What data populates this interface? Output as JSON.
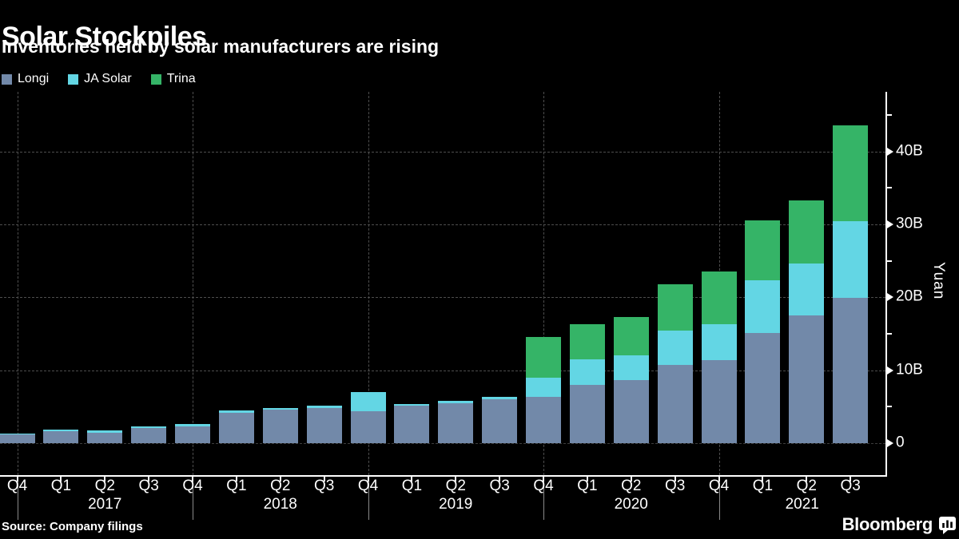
{
  "title": "Solar Stockpiles",
  "subtitle": "Inventories held by solar manufacturers are rising",
  "source": "Source: Company filings",
  "brand": {
    "name": "Bloomberg",
    "icon": "bar-chart-logo-icon"
  },
  "colors": {
    "background": "#000000",
    "text": "#ffffff",
    "grid": "#4d4d4d",
    "axis": "#ffffff",
    "longi": "#7289a9",
    "ja_solar": "#63d6e4",
    "trina": "#35b467"
  },
  "chart_data": {
    "type": "bar",
    "stacked": true,
    "title": "Solar Stockpiles",
    "subtitle": "Inventories held by solar manufacturers are rising",
    "ylabel": "Yuan",
    "unit": "billions of yuan",
    "ylim": [
      0,
      48
    ],
    "yticks": [
      0,
      10,
      20,
      30,
      40
    ],
    "ytick_labels": [
      "0",
      "10B",
      "20B",
      "30B",
      "40B"
    ],
    "grid": "dashed horizontal lines at major ticks, dashed vertical lines at year boundaries",
    "legend_position": "top-left",
    "categories": [
      "Q4 2016",
      "Q1 2017",
      "Q2 2017",
      "Q3 2017",
      "Q4 2017",
      "Q1 2018",
      "Q2 2018",
      "Q3 2018",
      "Q4 2018",
      "Q1 2019",
      "Q2 2019",
      "Q3 2019",
      "Q4 2019",
      "Q1 2020",
      "Q2 2020",
      "Q3 2020",
      "Q4 2020",
      "Q1 2021",
      "Q2 2021",
      "Q3 2021"
    ],
    "x_quarter_labels": [
      "Q4",
      "Q1",
      "Q2",
      "Q3",
      "Q4",
      "Q1",
      "Q2",
      "Q3",
      "Q4",
      "Q1",
      "Q2",
      "Q3",
      "Q4",
      "Q1",
      "Q2",
      "Q3",
      "Q4",
      "Q1",
      "Q2",
      "Q3"
    ],
    "year_labels": [
      "2017",
      "2018",
      "2019",
      "2020",
      "2021"
    ],
    "year_divider_indices": [
      0,
      4,
      8,
      12,
      16
    ],
    "series": [
      {
        "name": "Longi",
        "color": "#7289a9",
        "values": [
          1.25,
          1.65,
          1.45,
          2.05,
          2.35,
          4.2,
          4.55,
          4.85,
          4.35,
          5.1,
          5.45,
          6.0,
          6.3,
          8.0,
          8.6,
          10.7,
          11.4,
          15.1,
          17.5,
          19.9
        ]
      },
      {
        "name": "JA Solar",
        "color": "#63d6e4",
        "values": [
          0.1,
          0.2,
          0.3,
          0.25,
          0.25,
          0.3,
          0.25,
          0.35,
          2.65,
          0.25,
          0.35,
          0.3,
          2.7,
          3.55,
          3.45,
          4.75,
          4.9,
          7.25,
          7.1,
          10.6
        ]
      },
      {
        "name": "Trina",
        "color": "#35b467",
        "values": [
          0,
          0,
          0,
          0,
          0,
          0,
          0,
          0,
          0,
          0,
          0,
          0,
          5.6,
          4.75,
          5.3,
          6.3,
          7.25,
          8.25,
          8.7,
          13.1
        ]
      }
    ]
  }
}
